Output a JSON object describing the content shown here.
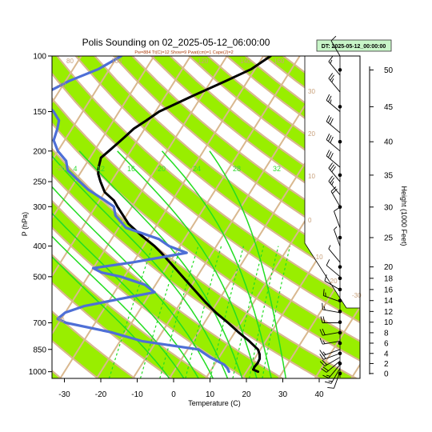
{
  "chart_data": {
    "type": "line",
    "title": "Polis Sounding on 02_2025-05-12_06:00:00",
    "subtitle": "Pw=884 Tt(C)=12 Show=9 Pwat(cm)=1 Cape(J)=2",
    "datetime_label": "DT: 2025-05-12_00:00:00",
    "xlabel": "Temperature (C)",
    "ylabel": "P (hPa)",
    "ylabel_right": "Height (1000 Feet)",
    "x_ticks": [
      -30,
      -20,
      -10,
      0,
      10,
      20,
      30,
      40
    ],
    "p_ticks": [
      100,
      150,
      200,
      250,
      300,
      400,
      500,
      700,
      850,
      1000
    ],
    "height_ticks": [
      0,
      2,
      4,
      6,
      8,
      10,
      12,
      14,
      16,
      18,
      20,
      25,
      30,
      35,
      40,
      45,
      50
    ],
    "xlim": [
      -33,
      51
    ],
    "plim": [
      100,
      1050
    ],
    "dry_adiabat_labels": [
      "-30",
      "-20",
      "-10",
      "0",
      "10",
      "20",
      "30"
    ],
    "mixing_ratio_labels": [
      "4",
      "12",
      "16",
      "20",
      "24",
      "28",
      "32"
    ],
    "series": [
      {
        "name": "",
        "role": "temperature",
        "color": "#000000",
        "points": [
          [
            23.2,
            1000
          ],
          [
            21.5,
            985
          ],
          [
            21.4,
            965
          ],
          [
            21.6,
            940
          ],
          [
            21.4,
            910
          ],
          [
            20.6,
            880
          ],
          [
            19.3,
            850
          ],
          [
            15.5,
            800
          ],
          [
            11,
            750
          ],
          [
            6.5,
            700
          ],
          [
            1.4,
            650
          ],
          [
            -3.5,
            600
          ],
          [
            -8.5,
            550
          ],
          [
            -14,
            500
          ],
          [
            -20,
            450
          ],
          [
            -24,
            420
          ],
          [
            -27,
            400
          ],
          [
            -32.5,
            370
          ],
          [
            -38,
            340
          ],
          [
            -44,
            300
          ],
          [
            -46,
            287
          ],
          [
            -50,
            270
          ],
          [
            -53,
            250
          ],
          [
            -55,
            236
          ],
          [
            -56,
            225
          ],
          [
            -57,
            210
          ],
          [
            -56,
            200
          ],
          [
            -55,
            190
          ],
          [
            -54,
            180
          ],
          [
            -53,
            170
          ],
          [
            -51,
            160
          ],
          [
            -49,
            150
          ],
          [
            -43,
            135
          ],
          [
            -36,
            120
          ],
          [
            -31,
            110
          ],
          [
            -28,
            100
          ]
        ]
      },
      {
        "name": "",
        "role": "dewpoint",
        "color": "#4e6fd6",
        "points": [
          [
            15.2,
            1000
          ],
          [
            14.2,
            975
          ],
          [
            12.7,
            950
          ],
          [
            7.5,
            900
          ],
          [
            3,
            850
          ],
          [
            -14,
            800
          ],
          [
            -24,
            750
          ],
          [
            -38,
            700
          ],
          [
            -41,
            680
          ],
          [
            -40,
            650
          ],
          [
            -36,
            620
          ],
          [
            -25,
            580
          ],
          [
            -19,
            560
          ],
          [
            -23,
            530
          ],
          [
            -31,
            500
          ],
          [
            -37,
            485
          ],
          [
            -40,
            470
          ],
          [
            -30,
            450
          ],
          [
            -17,
            420
          ],
          [
            -23,
            400
          ],
          [
            -27,
            380
          ],
          [
            -38,
            350
          ],
          [
            -43,
            320
          ],
          [
            -45,
            300
          ],
          [
            -49,
            285
          ],
          [
            -55,
            265
          ],
          [
            -60,
            245
          ],
          [
            -64,
            230
          ],
          [
            -66,
            215
          ],
          [
            -70,
            200
          ],
          [
            -73,
            185
          ],
          [
            -74,
            170
          ],
          [
            -75,
            160
          ],
          [
            -78,
            150
          ],
          [
            -82,
            140
          ],
          [
            -83,
            130
          ],
          [
            -79,
            120
          ],
          [
            -73,
            110
          ],
          [
            -69,
            100
          ]
        ]
      }
    ],
    "wind_barbs": [
      {
        "p": 1000,
        "dir": 200,
        "spd": 10
      },
      {
        "p": 975,
        "dir": 210,
        "spd": 15
      },
      {
        "p": 950,
        "dir": 220,
        "spd": 15
      },
      {
        "p": 925,
        "dir": 230,
        "spd": 20
      },
      {
        "p": 900,
        "dir": 240,
        "spd": 20
      },
      {
        "p": 875,
        "dir": 250,
        "spd": 20
      },
      {
        "p": 850,
        "dir": 250,
        "spd": 15
      },
      {
        "p": 800,
        "dir": 260,
        "spd": 15
      },
      {
        "p": 750,
        "dir": 260,
        "spd": 20
      },
      {
        "p": 700,
        "dir": 270,
        "spd": 20
      },
      {
        "p": 650,
        "dir": 280,
        "spd": 15
      },
      {
        "p": 600,
        "dir": 290,
        "spd": 15
      },
      {
        "p": 550,
        "dir": 300,
        "spd": 10
      },
      {
        "p": 500,
        "dir": 310,
        "spd": 10
      },
      {
        "p": 450,
        "dir": 320,
        "spd": 5
      },
      {
        "p": 400,
        "dir": 340,
        "spd": 5
      },
      {
        "p": 350,
        "dir": 340,
        "spd": 10
      },
      {
        "p": 300,
        "dir": 330,
        "spd": 20
      },
      {
        "p": 275,
        "dir": 320,
        "spd": 25
      },
      {
        "p": 250,
        "dir": 320,
        "spd": 30
      },
      {
        "p": 225,
        "dir": 310,
        "spd": 30
      },
      {
        "p": 200,
        "dir": 310,
        "spd": 30
      },
      {
        "p": 175,
        "dir": 310,
        "spd": 30
      },
      {
        "p": 150,
        "dir": 310,
        "spd": 25
      },
      {
        "p": 130,
        "dir": 320,
        "spd": 25
      },
      {
        "p": 115,
        "dir": 320,
        "spd": 15
      },
      {
        "p": 100,
        "dir": 330,
        "spd": 10
      }
    ]
  }
}
